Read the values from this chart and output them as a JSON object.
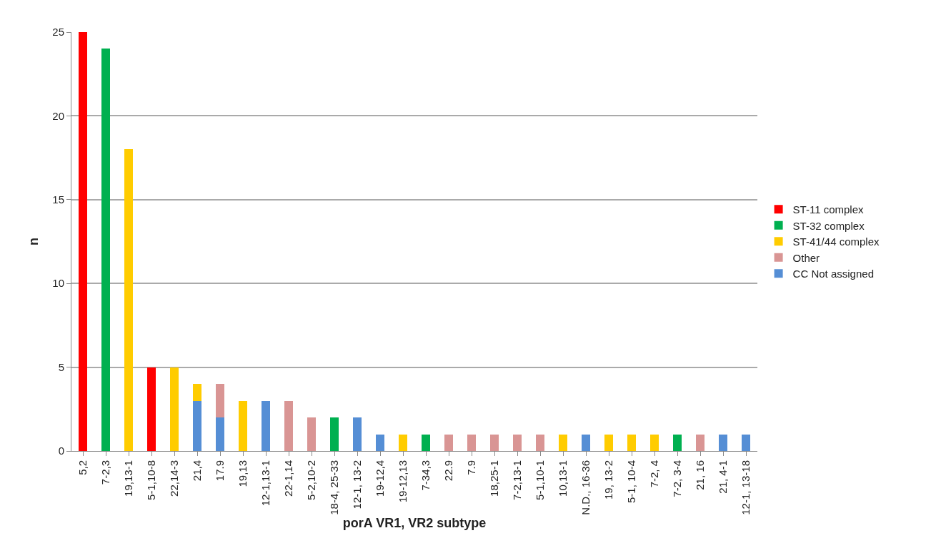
{
  "chart_data": {
    "type": "bar",
    "stacked": true,
    "xlabel": "porA VR1, VR2 subtype",
    "ylabel": "n",
    "categories": [
      "5,2",
      "7-2,3",
      "19,13-1",
      "5-1,10-8",
      "22,14-3",
      "21,4",
      "17.9",
      "19,13",
      "12-1,13-1",
      "22-1,14",
      "5-2,10-2",
      "18-4, 25-33",
      "12-1, 13-2",
      "19-12,4",
      "19-12,13",
      "7-34,3",
      "22.9",
      "7.9",
      "18,25-1",
      "7-2,13-1",
      "5-1,10-1",
      "10,13-1",
      "N.D., 16-36",
      "19, 13-2",
      "5-1, 10-4",
      "7-2, 4",
      "7-2, 3-4",
      "21, 16",
      "21, 4-1",
      "12-1, 13-18"
    ],
    "series": [
      {
        "name": "CC Not assigned",
        "color": "#558ed5",
        "values": [
          null,
          null,
          null,
          null,
          null,
          3,
          2,
          null,
          3,
          null,
          null,
          null,
          2,
          1,
          null,
          null,
          null,
          null,
          null,
          null,
          null,
          null,
          1,
          null,
          null,
          null,
          null,
          null,
          1,
          1
        ]
      },
      {
        "name": "Other",
        "color": "#d99594",
        "values": [
          null,
          null,
          null,
          null,
          null,
          null,
          2,
          null,
          null,
          3,
          2,
          null,
          null,
          null,
          null,
          null,
          1,
          1,
          1,
          1,
          1,
          null,
          null,
          null,
          null,
          null,
          null,
          1,
          null,
          null
        ]
      },
      {
        "name": "ST-41/44 complex",
        "color": "#ffcc00",
        "values": [
          null,
          null,
          18,
          null,
          5,
          1,
          null,
          3,
          null,
          null,
          null,
          null,
          null,
          null,
          1,
          null,
          null,
          null,
          null,
          null,
          null,
          1,
          null,
          1,
          1,
          1,
          null,
          null,
          null,
          null
        ]
      },
      {
        "name": "ST-32 complex",
        "color": "#00b050",
        "values": [
          null,
          24,
          null,
          null,
          null,
          null,
          null,
          null,
          null,
          null,
          null,
          2,
          null,
          null,
          null,
          1,
          null,
          null,
          null,
          null,
          null,
          null,
          null,
          null,
          null,
          null,
          1,
          null,
          null,
          null
        ]
      },
      {
        "name": "ST-11 complex",
        "color": "#ff0000",
        "values": [
          25,
          null,
          null,
          5,
          null,
          null,
          null,
          null,
          null,
          null,
          null,
          null,
          null,
          null,
          null,
          null,
          null,
          null,
          null,
          null,
          null,
          null,
          null,
          null,
          null,
          null,
          null,
          null,
          null,
          null
        ]
      }
    ],
    "ylim": [
      0,
      25
    ],
    "yticks": [
      0,
      5,
      10,
      15,
      20,
      25
    ],
    "grid": "y",
    "legend": "right"
  }
}
